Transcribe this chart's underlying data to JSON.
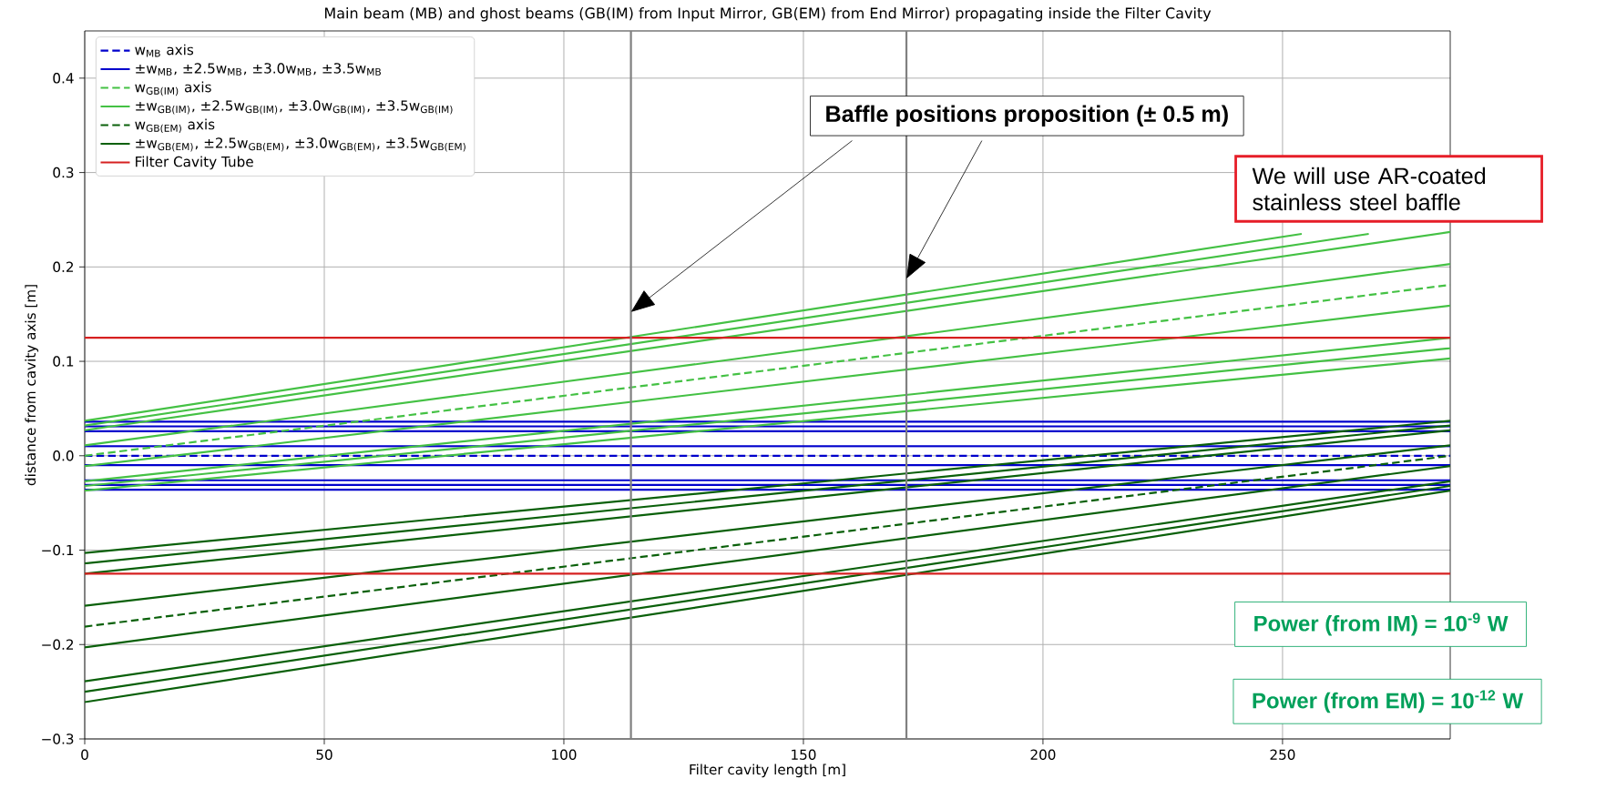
{
  "chart_data": {
    "type": "line",
    "title": "Main beam (MB) and ghost beams (GB(IM) from Input Mirror, GB(EM) from End Mirror) propagating inside the Filter Cavity",
    "xlabel": "Filter cavity length [m]",
    "ylabel": "distance from cavity axis [m]",
    "x": [
      0,
      285
    ],
    "xlim": [
      0,
      285
    ],
    "ylim": [
      -0.3,
      0.45
    ],
    "xticks": [
      0,
      50,
      100,
      150,
      200,
      250
    ],
    "yticks": [
      {
        "value": -0.3,
        "label": "−0.3"
      },
      {
        "value": -0.2,
        "label": "−0.2"
      },
      {
        "value": -0.1,
        "label": "−0.1"
      },
      {
        "value": 0,
        "label": "0.0"
      },
      0.1,
      0.2,
      0.3,
      0.4
    ],
    "grid": true,
    "legend": "top left",
    "series": [
      {
        "name": "w$_{MB}$ axis",
        "color": "#0000cc",
        "line_style": "dashed",
        "values": [
          0,
          0
        ]
      },
      {
        "name": "±w$_{MB}$, ±2.5w$_{MB}$, ±3.0w$_{MB}$, ±3.5w$_{MB}$",
        "color": "#0000cc",
        "line_style": "solid",
        "values": [
          0.01,
          0.01
        ]
      },
      {
        "color": "#0000cc",
        "line_style": "solid",
        "values": [
          0.026,
          0.026
        ]
      },
      {
        "color": "#0000cc",
        "line_style": "solid",
        "values": [
          0.031,
          0.031
        ]
      },
      {
        "color": "#0000cc",
        "line_style": "solid",
        "values": [
          0.036,
          0.036
        ]
      },
      {
        "color": "#0000cc",
        "line_style": "solid",
        "values": [
          -0.01,
          -0.01
        ]
      },
      {
        "color": "#0000cc",
        "line_style": "solid",
        "values": [
          -0.026,
          -0.026
        ]
      },
      {
        "color": "#0000cc",
        "line_style": "solid",
        "values": [
          -0.031,
          -0.031
        ]
      },
      {
        "color": "#0000cc",
        "line_style": "solid",
        "values": [
          -0.036,
          -0.036
        ]
      },
      {
        "name": "w$_{GB(IM)}$ axis",
        "color": "#44c144",
        "line_style": "dashed",
        "values": [
          0,
          0.181
        ]
      },
      {
        "name": "±w$_{GB(IM)}$, ±2.5w$_{GB(IM)}$, ±3.0w$_{GB(IM)}$, ±3.5w$_{GB(IM)}$",
        "color": "#44c144",
        "line_style": "solid",
        "values": [
          0.011,
          0.203
        ]
      },
      {
        "color": "#44c144",
        "line_style": "solid",
        "values": [
          0.027,
          0.237
        ]
      },
      {
        "color": "#44c144",
        "line_style": "solid",
        "x": [
          0,
          268
        ],
        "values": [
          0.032,
          0.235
        ]
      },
      {
        "color": "#44c144",
        "line_style": "solid",
        "x": [
          0,
          254
        ],
        "values": [
          0.037,
          0.235
        ]
      },
      {
        "color": "#44c144",
        "line_style": "solid",
        "values": [
          -0.011,
          0.159
        ]
      },
      {
        "color": "#44c144",
        "line_style": "solid",
        "values": [
          -0.027,
          0.125
        ]
      },
      {
        "color": "#44c144",
        "line_style": "solid",
        "values": [
          -0.032,
          0.114
        ]
      },
      {
        "color": "#44c144",
        "line_style": "solid",
        "values": [
          -0.037,
          0.103
        ]
      },
      {
        "name": "w$_{GB(EM)}$ axis",
        "color": "#0a600a",
        "line_style": "dashed",
        "values": [
          -0.181,
          0
        ]
      },
      {
        "name": "±w$_{GB(EM)}$, ±2.5w$_{GB(EM)}$, ±3.0w$_{GB(EM)}$, ±3.5w$_{GB(EM)}$",
        "color": "#0a600a",
        "line_style": "solid",
        "values": [
          -0.159,
          0.011
        ]
      },
      {
        "color": "#0a600a",
        "line_style": "solid",
        "values": [
          -0.125,
          0.027
        ]
      },
      {
        "color": "#0a600a",
        "line_style": "solid",
        "values": [
          -0.114,
          0.032
        ]
      },
      {
        "color": "#0a600a",
        "line_style": "solid",
        "values": [
          -0.103,
          0.037
        ]
      },
      {
        "color": "#0a600a",
        "line_style": "solid",
        "values": [
          -0.203,
          -0.011
        ]
      },
      {
        "color": "#0a600a",
        "line_style": "solid",
        "values": [
          -0.239,
          -0.027
        ]
      },
      {
        "color": "#0a600a",
        "line_style": "solid",
        "values": [
          -0.25,
          -0.032
        ]
      },
      {
        "color": "#0a600a",
        "line_style": "solid",
        "values": [
          -0.261,
          -0.037
        ]
      },
      {
        "name": "Filter Cavity Tube",
        "color": "#d62020",
        "line_style": "solid",
        "values": [
          0.125,
          0.125
        ]
      },
      {
        "color": "#d62020",
        "line_style": "solid",
        "values": [
          -0.125,
          -0.125
        ]
      }
    ],
    "ref_lines": [
      {
        "axis": "x",
        "value": 114,
        "color": "#808080"
      },
      {
        "axis": "x",
        "value": 171.5,
        "color": "#808080"
      }
    ],
    "annotations": [
      "Baffle positions proposition  (± 0.5 m)",
      "We will use AR-coated stainless steel baffle",
      "Power (from IM) = 10$^{-9}$ W",
      "Power (from EM) = 10$^{-12}$ W"
    ]
  }
}
